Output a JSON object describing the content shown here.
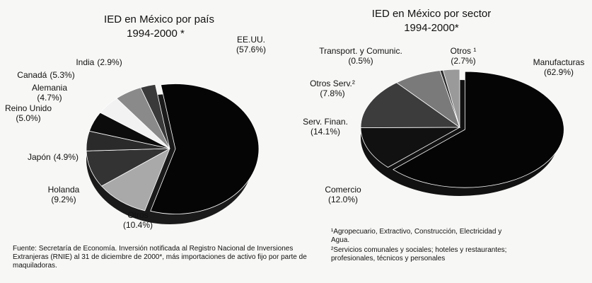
{
  "chart_data": [
    {
      "type": "pie",
      "title": "IED en México por país",
      "subtitle": "1994-2000 *",
      "categories": [
        "EE.UU.",
        "Otros",
        "Holanda",
        "Japón",
        "Reino Unido",
        "Alemania",
        "Canadá",
        "India"
      ],
      "values": [
        57.6,
        10.4,
        9.2,
        4.9,
        5.0,
        4.7,
        5.3,
        2.9
      ],
      "value_labels": [
        "(57.6%)",
        "(10.4%)",
        "(9.2%)",
        "(4.9%)",
        "(5.0%)",
        "(4.7%)",
        "(5.3%)",
        "(2.9%)"
      ],
      "colors": [
        "#050505",
        "#a9a9a9",
        "#333333",
        "#2a2a2a",
        "#0c0c0c",
        "#f2f2f2",
        "#8a8a8a",
        "#3a3a3a"
      ],
      "notes": [
        "Fuente: Secretaría de Economía. Inversión notificada al Registro Nacional de Inversiones Extranjeras (RNIE) al 31 de diciembre de 2000*, más importaciones de activo fijo por parte de maquiladoras."
      ]
    },
    {
      "type": "pie",
      "title": "IED en México por sector",
      "subtitle": "1994-2000*",
      "categories": [
        "Manufacturas",
        "Comercio",
        "Serv. Finan.",
        "Otros Serv.²",
        "Transport. y Comunic.",
        "Otros ¹"
      ],
      "values": [
        62.9,
        12.0,
        14.1,
        7.8,
        0.5,
        2.7
      ],
      "value_labels": [
        "(62.9%)",
        "(12.0%)",
        "(14.1%)",
        "(7.8%)",
        "(0.5%)",
        "(2.7%)"
      ],
      "colors": [
        "#050505",
        "#111111",
        "#3c3c3c",
        "#7a7a7a",
        "#2e2e2e",
        "#9a9a9a"
      ],
      "notes": [
        "¹Agropecuario, Extractivo, Construcción, Electricidad y Agua.",
        "²Servicios comunales y sociales; hoteles y restaurantes; profesionales, técnicos y personales"
      ]
    }
  ]
}
